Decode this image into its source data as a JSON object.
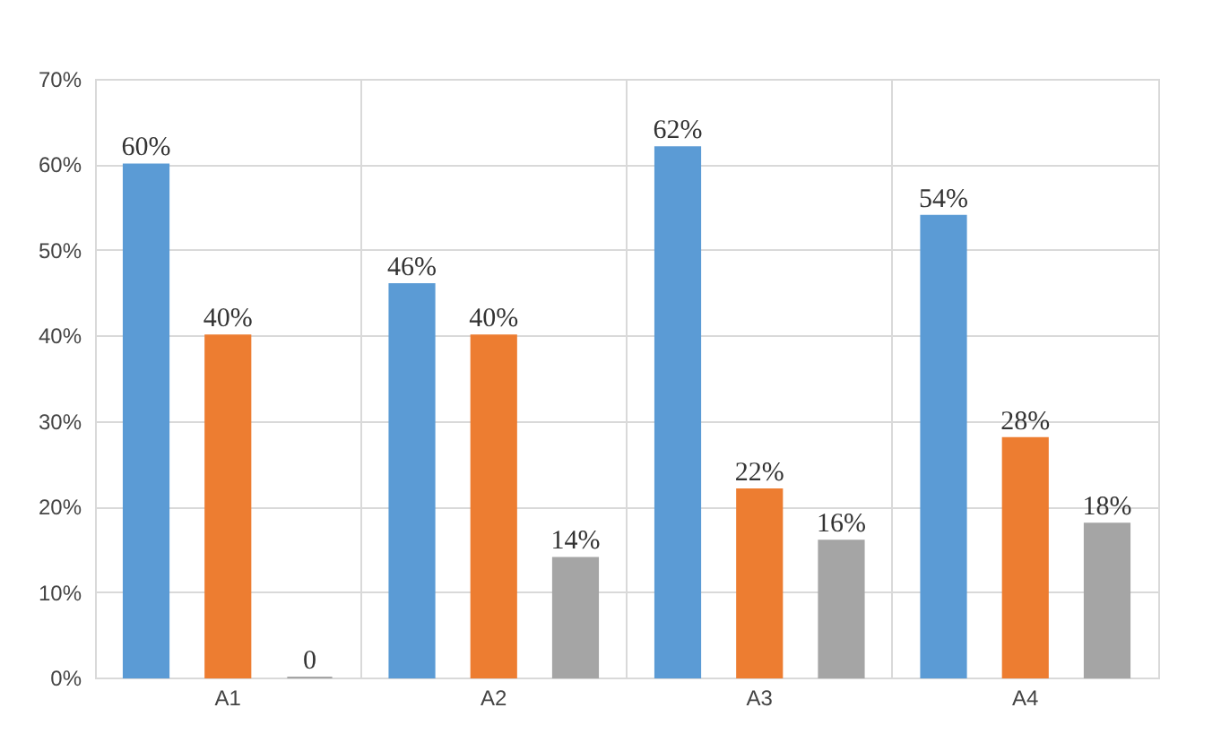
{
  "chart_data": {
    "type": "bar",
    "categories": [
      "A1",
      "A2",
      "A3",
      "A4"
    ],
    "series": [
      {
        "color": "#5b9bd5",
        "values": [
          60,
          46,
          62,
          54
        ],
        "value_labels": [
          "60%",
          "46%",
          "62%",
          "54%"
        ]
      },
      {
        "color": "#ed7d31",
        "values": [
          40,
          40,
          22,
          28
        ],
        "value_labels": [
          "40%",
          "40%",
          "22%",
          "28%"
        ]
      },
      {
        "color": "#a5a5a5",
        "values": [
          0,
          14,
          16,
          18
        ],
        "value_labels": [
          "0",
          "14%",
          "16%",
          "18%"
        ]
      }
    ],
    "ylim": [
      0,
      70
    ],
    "yticks": [
      {
        "value": 0,
        "label": "0%"
      },
      {
        "value": 10,
        "label": "10%"
      },
      {
        "value": 20,
        "label": "20%"
      },
      {
        "value": 30,
        "label": "30%"
      },
      {
        "value": 40,
        "label": "40%"
      },
      {
        "value": 50,
        "label": "50%"
      },
      {
        "value": 60,
        "label": "60%"
      },
      {
        "value": 70,
        "label": "70%"
      }
    ],
    "grid": true,
    "legend": false
  }
}
